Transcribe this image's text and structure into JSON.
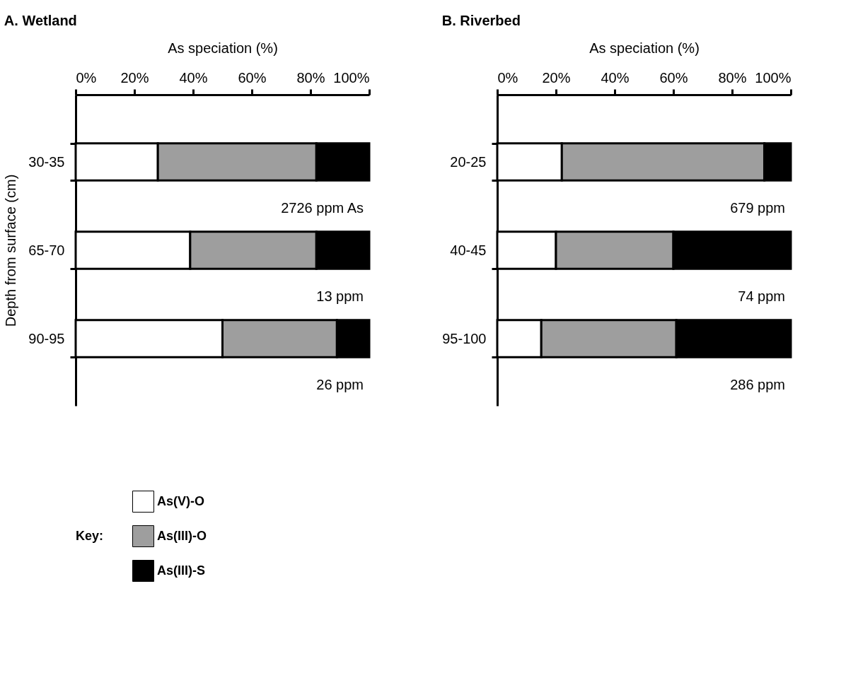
{
  "chart_data": [
    {
      "type": "bar",
      "title": "A. Wetland",
      "xlabel": "As speciation (%)",
      "ylabel": "Depth from surface (cm)",
      "orientation": "horizontal",
      "stacked": true,
      "categories": [
        "30-35",
        "65-70",
        "90-95"
      ],
      "series": [
        {
          "name": "As(V)-O",
          "color": "#ffffff",
          "values": [
            28,
            39,
            50
          ]
        },
        {
          "name": "As(III)-O",
          "color": "#9e9e9e",
          "values": [
            54,
            43,
            39
          ]
        },
        {
          "name": "As(III)-S",
          "color": "#000000",
          "values": [
            18,
            18,
            11
          ]
        }
      ],
      "xlim": [
        0,
        100
      ],
      "xticks": [
        {
          "value": 0,
          "label": "0%"
        },
        {
          "value": 20,
          "label": "20%"
        },
        {
          "value": 40,
          "label": "40%"
        },
        {
          "value": 60,
          "label": "60%"
        },
        {
          "value": 80,
          "label": "80%"
        },
        {
          "value": 100,
          "label": "100%"
        }
      ],
      "annotations": [
        "2726 ppm As",
        "13 ppm",
        "26 ppm"
      ],
      "legend": "bottom",
      "legend_title": "Key:"
    },
    {
      "type": "bar",
      "title": "B. Riverbed",
      "xlabel": "As speciation (%)",
      "orientation": "horizontal",
      "stacked": true,
      "categories": [
        "20-25",
        "40-45",
        "95-100"
      ],
      "series": [
        {
          "color": "#ffffff",
          "values": [
            22,
            20,
            15
          ]
        },
        {
          "color": "#9e9e9e",
          "values": [
            69,
            40,
            46
          ]
        },
        {
          "color": "#000000",
          "values": [
            9,
            40,
            39
          ]
        }
      ],
      "xlim": [
        0,
        100
      ],
      "xticks": [
        {
          "value": 0,
          "label": "0%"
        },
        {
          "value": 20,
          "label": "20%"
        },
        {
          "value": 40,
          "label": "40%"
        },
        {
          "value": 60,
          "label": "60%"
        },
        {
          "value": 80,
          "label": "80%"
        },
        {
          "value": 100,
          "label": "100%"
        }
      ],
      "annotations": [
        "679 ppm",
        "74 ppm",
        "286 ppm"
      ]
    }
  ]
}
